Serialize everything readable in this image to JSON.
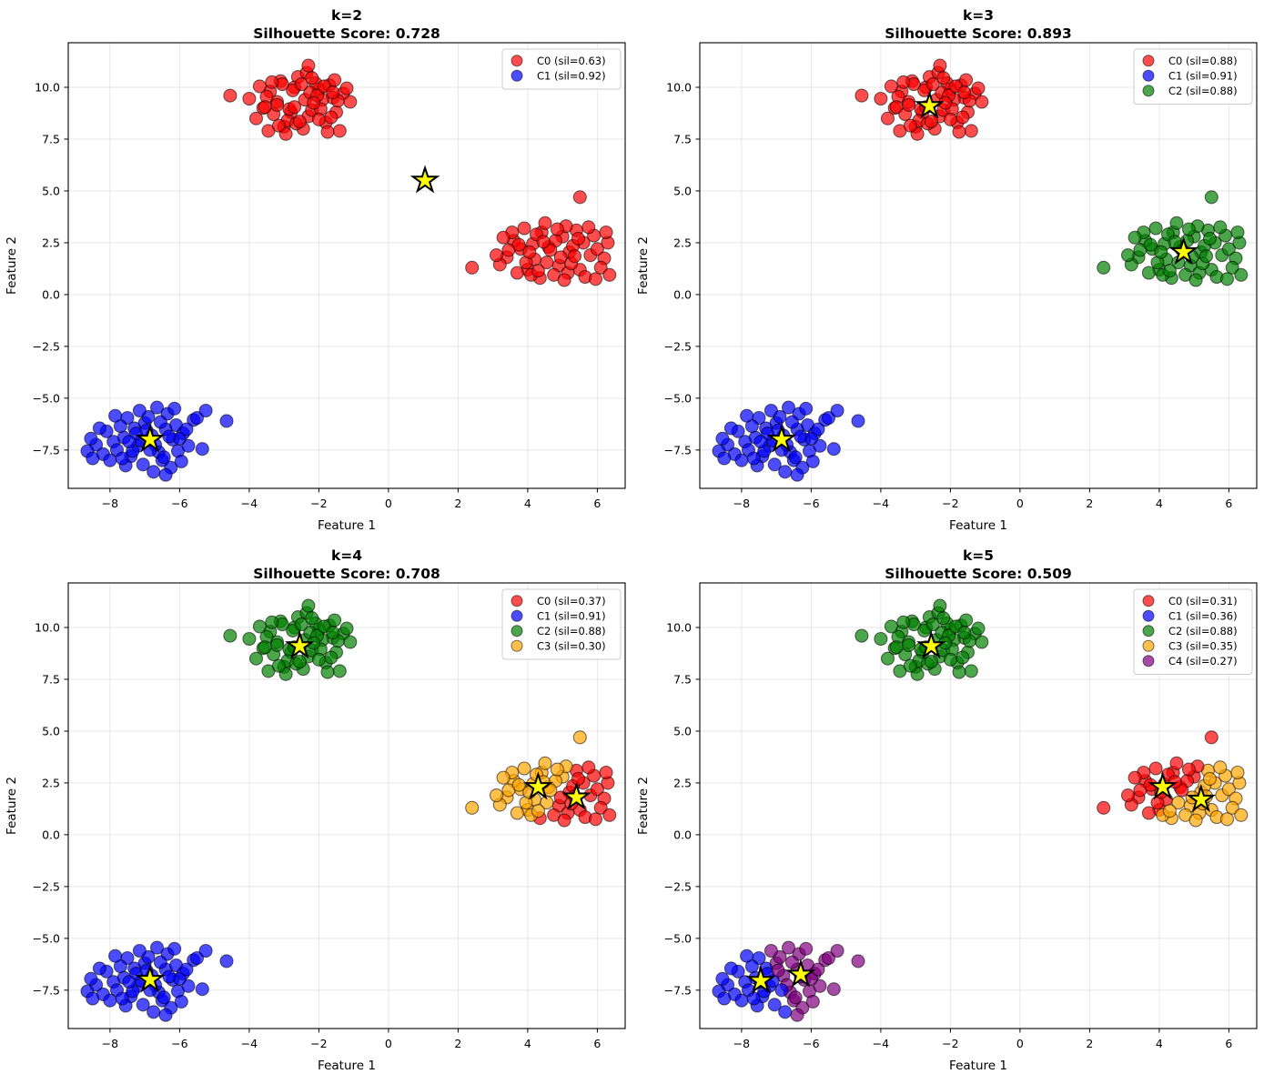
{
  "figure": {
    "background": "#ffffff",
    "xlabel": "Feature 1",
    "ylabel": "Feature 2"
  },
  "colors": {
    "red": "#ff0000",
    "blue": "#0000ff",
    "green": "#008000",
    "orange": "#ffa500",
    "purple": "#800080",
    "star_fill": "#ffff00",
    "star_edge": "#000000",
    "grid": "#b0b0b0",
    "spine": "#000000"
  },
  "axes": {
    "xlim": [
      -9.2,
      6.8
    ],
    "ylim": [
      -9.35,
      12.15
    ],
    "xticks": [
      -8,
      -6,
      -4,
      -2,
      0,
      2,
      4,
      6
    ],
    "xtick_labels": [
      "−8",
      "−6",
      "−4",
      "−2",
      "0",
      "2",
      "4",
      "6"
    ],
    "yticks": [
      10.0,
      7.5,
      5.0,
      2.5,
      0.0,
      -2.5,
      -5.0,
      -7.5
    ],
    "ytick_labels": [
      "10.0",
      "7.5",
      "5.0",
      "2.5",
      "0.0",
      "−2.5",
      "−5.0",
      "−7.5"
    ]
  },
  "chart_data": {
    "type": "scatter",
    "point_alpha": 0.7,
    "clusters": {
      "top": [
        [
          -2.4,
          9.4
        ],
        [
          -2.8,
          8.8
        ],
        [
          -2.0,
          9.9
        ],
        [
          -3.2,
          9.3
        ],
        [
          -2.3,
          8.6
        ],
        [
          -1.6,
          9.5
        ],
        [
          -3.6,
          9.0
        ],
        [
          -2.1,
          10.2
        ],
        [
          -2.7,
          10.0
        ],
        [
          -1.8,
          8.3
        ],
        [
          -3.0,
          8.1
        ],
        [
          -1.3,
          9.7
        ],
        [
          -3.4,
          9.8
        ],
        [
          -2.2,
          8.9
        ],
        [
          -2.6,
          10.5
        ],
        [
          -1.7,
          10.1
        ],
        [
          -3.8,
          8.5
        ],
        [
          -1.9,
          9.4
        ],
        [
          -2.9,
          8.4
        ],
        [
          -1.5,
          8.8
        ],
        [
          -3.1,
          10.3
        ],
        [
          -2.45,
          8.0
        ],
        [
          -1.1,
          9.3
        ],
        [
          -3.3,
          8.7
        ],
        [
          -2.25,
          9.75
        ],
        [
          -3.5,
          9.55
        ],
        [
          -1.95,
          8.95
        ],
        [
          -2.65,
          8.25
        ],
        [
          -1.55,
          10.35
        ],
        [
          -3.7,
          10.05
        ],
        [
          -2.05,
          9.6
        ],
        [
          -2.85,
          8.95
        ],
        [
          -1.4,
          7.9
        ],
        [
          -3.05,
          10.15
        ],
        [
          -2.35,
          10.7
        ],
        [
          -1.75,
          7.85
        ],
        [
          -3.45,
          7.9
        ],
        [
          -2.15,
          9.25
        ],
        [
          -2.75,
          9.85
        ],
        [
          -1.2,
          9.95
        ],
        [
          -3.2,
          9.15
        ],
        [
          -1.85,
          10.05
        ],
        [
          -2.95,
          7.75
        ],
        [
          -1.65,
          8.55
        ],
        [
          -4.0,
          9.45
        ],
        [
          -2.5,
          10.15
        ],
        [
          -2.0,
          8.45
        ],
        [
          -3.35,
          10.25
        ],
        [
          -1.45,
          9.35
        ],
        [
          -2.55,
          8.35
        ],
        [
          -2.2,
          10.45
        ],
        [
          -3.15,
          8.15
        ],
        [
          -1.6,
          9.75
        ],
        [
          -3.55,
          9.05
        ],
        [
          -2.3,
          11.05
        ],
        [
          -2.7,
          9.05
        ],
        [
          -4.55,
          9.6
        ]
      ],
      "right": [
        [
          4.6,
          2.3
        ],
        [
          4.2,
          1.7
        ],
        [
          5.0,
          2.8
        ],
        [
          3.8,
          2.2
        ],
        [
          4.9,
          1.4
        ],
        [
          5.6,
          2.5
        ],
        [
          3.4,
          1.8
        ],
        [
          4.4,
          3.0
        ],
        [
          5.2,
          2.05
        ],
        [
          4.0,
          1.2
        ],
        [
          5.8,
          1.9
        ],
        [
          3.6,
          2.6
        ],
        [
          4.75,
          0.95
        ],
        [
          5.4,
          3.1
        ],
        [
          4.15,
          2.45
        ],
        [
          6.0,
          2.2
        ],
        [
          3.2,
          1.45
        ],
        [
          4.55,
          1.55
        ],
        [
          5.1,
          3.3
        ],
        [
          4.35,
          0.8
        ],
        [
          5.9,
          2.85
        ],
        [
          3.9,
          3.2
        ],
        [
          4.8,
          2.6
        ],
        [
          5.5,
          1.2
        ],
        [
          3.45,
          2.15
        ],
        [
          6.2,
          1.75
        ],
        [
          4.1,
          0.95
        ],
        [
          5.3,
          2.35
        ],
        [
          4.5,
          3.45
        ],
        [
          3.7,
          1.05
        ],
        [
          6.3,
          2.5
        ],
        [
          4.25,
          2.9
        ],
        [
          5.65,
          0.85
        ],
        [
          3.55,
          3.0
        ],
        [
          4.95,
          1.8
        ],
        [
          5.15,
          1.05
        ],
        [
          3.3,
          2.75
        ],
        [
          6.1,
          1.3
        ],
        [
          4.65,
          2.15
        ],
        [
          5.45,
          2.7
        ],
        [
          3.95,
          1.55
        ],
        [
          5.75,
          3.25
        ],
        [
          4.3,
          1.15
        ],
        [
          5.05,
          0.7
        ],
        [
          6.35,
          0.95
        ],
        [
          3.75,
          2.4
        ],
        [
          5.25,
          1.5
        ],
        [
          4.45,
          2.55
        ],
        [
          5.95,
          0.75
        ],
        [
          4.05,
          2.05
        ],
        [
          5.5,
          4.7
        ],
        [
          2.4,
          1.3
        ],
        [
          6.25,
          3.0
        ],
        [
          3.1,
          1.9
        ],
        [
          4.85,
          3.15
        ],
        [
          5.35,
          1.85
        ]
      ],
      "bottom": [
        [
          -6.8,
          -6.8
        ],
        [
          -7.2,
          -7.3
        ],
        [
          -6.4,
          -6.5
        ],
        [
          -7.6,
          -6.9
        ],
        [
          -6.6,
          -7.6
        ],
        [
          -7.0,
          -6.2
        ],
        [
          -7.9,
          -7.1
        ],
        [
          -6.2,
          -7.0
        ],
        [
          -7.4,
          -7.8
        ],
        [
          -6.9,
          -5.9
        ],
        [
          -8.1,
          -6.6
        ],
        [
          -6.1,
          -6.3
        ],
        [
          -7.1,
          -7.05
        ],
        [
          -6.5,
          -8.0
        ],
        [
          -7.8,
          -7.5
        ],
        [
          -6.35,
          -5.75
        ],
        [
          -8.4,
          -7.25
        ],
        [
          -6.7,
          -7.25
        ],
        [
          -7.3,
          -6.45
        ],
        [
          -6.05,
          -7.55
        ],
        [
          -8.2,
          -7.7
        ],
        [
          -7.5,
          -5.95
        ],
        [
          -5.9,
          -6.7
        ],
        [
          -7.05,
          -8.2
        ],
        [
          -6.55,
          -6.15
        ],
        [
          -8.55,
          -6.95
        ],
        [
          -6.25,
          -8.35
        ],
        [
          -7.7,
          -6.35
        ],
        [
          -5.75,
          -7.3
        ],
        [
          -7.15,
          -5.6
        ],
        [
          -8.0,
          -8.0
        ],
        [
          -6.45,
          -7.85
        ],
        [
          -5.6,
          -6.05
        ],
        [
          -7.35,
          -7.55
        ],
        [
          -6.15,
          -5.5
        ],
        [
          -8.65,
          -7.55
        ],
        [
          -6.85,
          -7.5
        ],
        [
          -7.55,
          -8.25
        ],
        [
          -5.95,
          -8.05
        ],
        [
          -7.25,
          -6.7
        ],
        [
          -6.0,
          -6.95
        ],
        [
          -8.3,
          -6.45
        ],
        [
          -6.65,
          -5.45
        ],
        [
          -7.45,
          -7.1
        ],
        [
          -5.5,
          -5.95
        ],
        [
          -6.3,
          -6.85
        ],
        [
          -7.85,
          -5.85
        ],
        [
          -6.75,
          -8.55
        ],
        [
          -5.8,
          -6.5
        ],
        [
          -7.65,
          -7.9
        ],
        [
          -4.65,
          -6.1
        ],
        [
          -5.25,
          -5.6
        ],
        [
          -6.95,
          -6.55
        ],
        [
          -8.5,
          -7.9
        ],
        [
          -6.4,
          -8.7
        ],
        [
          -5.35,
          -7.45
        ]
      ]
    },
    "panels": [
      {
        "title": "k=2",
        "subtitle": "Silhouette Score: 0.728",
        "legend": [
          {
            "label": "C0 (sil=0.63)",
            "color": "red"
          },
          {
            "label": "C1 (sil=0.92)",
            "color": "blue"
          }
        ],
        "centroids": [
          {
            "x": 1.05,
            "y": 5.5,
            "color": "red"
          },
          {
            "x": -6.85,
            "y": -7.0,
            "color": "blue"
          }
        ]
      },
      {
        "title": "k=3",
        "subtitle": "Silhouette Score: 0.893",
        "legend": [
          {
            "label": "C0 (sil=0.88)",
            "color": "red"
          },
          {
            "label": "C1 (sil=0.91)",
            "color": "blue"
          },
          {
            "label": "C2 (sil=0.88)",
            "color": "green"
          }
        ],
        "centroids": [
          {
            "x": -2.6,
            "y": 9.1,
            "color": "red"
          },
          {
            "x": -6.85,
            "y": -7.0,
            "color": "blue"
          },
          {
            "x": 4.7,
            "y": 2.05,
            "color": "green"
          }
        ]
      },
      {
        "title": "k=4",
        "subtitle": "Silhouette Score: 0.708",
        "legend": [
          {
            "label": "C0 (sil=0.37)",
            "color": "red"
          },
          {
            "label": "C1 (sil=0.91)",
            "color": "blue"
          },
          {
            "label": "C2 (sil=0.88)",
            "color": "green"
          },
          {
            "label": "C3 (sil=0.30)",
            "color": "orange"
          }
        ],
        "centroids": [
          {
            "x": 5.4,
            "y": 1.8,
            "color": "red"
          },
          {
            "x": -6.85,
            "y": -7.0,
            "color": "blue"
          },
          {
            "x": -2.55,
            "y": 9.1,
            "color": "green"
          },
          {
            "x": 4.3,
            "y": 2.3,
            "color": "orange"
          }
        ]
      },
      {
        "title": "k=5",
        "subtitle": "Silhouette Score: 0.509",
        "legend": [
          {
            "label": "C0 (sil=0.31)",
            "color": "red"
          },
          {
            "label": "C1 (sil=0.36)",
            "color": "blue"
          },
          {
            "label": "C2 (sil=0.88)",
            "color": "green"
          },
          {
            "label": "C3 (sil=0.35)",
            "color": "orange"
          },
          {
            "label": "C4 (sil=0.27)",
            "color": "purple"
          }
        ],
        "centroids": [
          {
            "x": 4.1,
            "y": 2.3,
            "color": "red"
          },
          {
            "x": -7.45,
            "y": -7.05,
            "color": "blue"
          },
          {
            "x": -2.55,
            "y": 9.1,
            "color": "green"
          },
          {
            "x": 5.2,
            "y": 1.7,
            "color": "orange"
          },
          {
            "x": -6.3,
            "y": -6.75,
            "color": "purple"
          }
        ]
      }
    ]
  }
}
